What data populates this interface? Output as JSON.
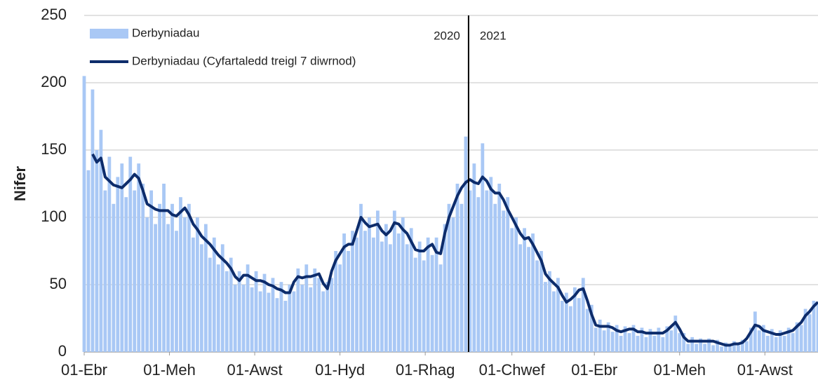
{
  "chart_data": {
    "type": "bar_line",
    "ylabel": "Nifer",
    "xlim": [
      0,
      525
    ],
    "xticks": [
      {
        "value": 0,
        "label": "01-Ebr"
      },
      {
        "value": 61,
        "label": "01-Meh"
      },
      {
        "value": 122,
        "label": "01-Awst"
      },
      {
        "value": 183,
        "label": "01-Hyd"
      },
      {
        "value": 244,
        "label": "01-Rhag"
      },
      {
        "value": 306,
        "label": "01-Chwef"
      },
      {
        "value": 365,
        "label": "01-Ebr"
      },
      {
        "value": 426,
        "label": "01-Meh"
      },
      {
        "value": 487,
        "label": "01-Awst"
      }
    ],
    "ylim": [
      0,
      250
    ],
    "yticks": [
      0,
      50,
      100,
      150,
      200,
      250
    ],
    "grid": true,
    "legend": "upper left",
    "divider": {
      "x": 275,
      "labels": [
        "2020",
        "2021"
      ]
    },
    "x": [
      0,
      3,
      6,
      9,
      12,
      15,
      18,
      21,
      24,
      27,
      30,
      33,
      36,
      39,
      42,
      45,
      48,
      51,
      54,
      57,
      60,
      63,
      66,
      69,
      72,
      75,
      78,
      81,
      84,
      87,
      90,
      93,
      96,
      99,
      102,
      105,
      108,
      111,
      114,
      117,
      120,
      123,
      126,
      129,
      132,
      135,
      138,
      141,
      144,
      147,
      150,
      153,
      156,
      159,
      162,
      165,
      168,
      171,
      174,
      177,
      180,
      183,
      186,
      189,
      192,
      195,
      198,
      201,
      204,
      207,
      210,
      213,
      216,
      219,
      222,
      225,
      228,
      231,
      234,
      237,
      240,
      243,
      246,
      249,
      252,
      255,
      258,
      261,
      264,
      267,
      270,
      273,
      276,
      279,
      282,
      285,
      288,
      291,
      294,
      297,
      300,
      303,
      306,
      309,
      312,
      315,
      318,
      321,
      324,
      327,
      330,
      333,
      336,
      339,
      342,
      345,
      348,
      351,
      354,
      357,
      360,
      363,
      366,
      369,
      372,
      375,
      378,
      381,
      384,
      387,
      390,
      393,
      396,
      399,
      402,
      405,
      408,
      411,
      414,
      417,
      420,
      423,
      426,
      429,
      432,
      435,
      438,
      441,
      444,
      447,
      450,
      453,
      456,
      459,
      462,
      465,
      468,
      471,
      474,
      477,
      480,
      483,
      486,
      489,
      492,
      495,
      498,
      501,
      504,
      507,
      510,
      513,
      516,
      519,
      522,
      525
    ],
    "series": [
      {
        "name": "Derbyniadau",
        "kind": "bar",
        "color": "#a9c8f5",
        "values": [
          205,
          135,
          195,
          150,
          165,
          120,
          145,
          110,
          130,
          140,
          115,
          145,
          120,
          140,
          125,
          100,
          120,
          95,
          110,
          125,
          95,
          110,
          90,
          115,
          100,
          110,
          85,
          100,
          80,
          95,
          70,
          85,
          65,
          80,
          60,
          70,
          50,
          60,
          50,
          65,
          48,
          60,
          45,
          58,
          44,
          55,
          40,
          52,
          38,
          50,
          45,
          62,
          50,
          65,
          48,
          62,
          55,
          45,
          52,
          55,
          75,
          65,
          88,
          75,
          90,
          85,
          110,
          90,
          100,
          85,
          105,
          82,
          95,
          80,
          105,
          88,
          100,
          80,
          92,
          70,
          82,
          68,
          85,
          72,
          85,
          65,
          95,
          110,
          100,
          125,
          110,
          160,
          120,
          140,
          115,
          155,
          120,
          130,
          110,
          125,
          105,
          115,
          92,
          100,
          80,
          92,
          78,
          88,
          68,
          75,
          52,
          60,
          45,
          55,
          38,
          44,
          34,
          48,
          40,
          55,
          32,
          35,
          18,
          24,
          16,
          22,
          15,
          20,
          12,
          19,
          14,
          20,
          12,
          18,
          11,
          17,
          12,
          18,
          11,
          19,
          16,
          27,
          14,
          14,
          6,
          11,
          6,
          10,
          6,
          10,
          5,
          9,
          4,
          7,
          4,
          8,
          5,
          9,
          8,
          18,
          30,
          16,
          20,
          12,
          17,
          11,
          16,
          12,
          18,
          14,
          22,
          20,
          32,
          28,
          38,
          35
        ]
      },
      {
        "name": "Derbyniadau  (Cyfartaledd treigl 7 diwrnod)",
        "kind": "line",
        "color": "#0d2c6b",
        "values": [
          null,
          null,
          147,
          141,
          144,
          130,
          127,
          124,
          123,
          122,
          125,
          128,
          132,
          129,
          120,
          110,
          108,
          106,
          105,
          105,
          105,
          102,
          101,
          104,
          107,
          102,
          95,
          91,
          86,
          83,
          80,
          76,
          72,
          69,
          66,
          62,
          56,
          53,
          57,
          57,
          55,
          53,
          53,
          52,
          50,
          49,
          47,
          46,
          44,
          44,
          52,
          56,
          55,
          56,
          56,
          57,
          58,
          51,
          47,
          60,
          68,
          73,
          78,
          80,
          80,
          90,
          100,
          96,
          93,
          94,
          95,
          90,
          87,
          90,
          96,
          95,
          91,
          88,
          82,
          76,
          75,
          75,
          78,
          80,
          74,
          73,
          88,
          100,
          108,
          116,
          122,
          126,
          128,
          126,
          125,
          130,
          127,
          121,
          118,
          118,
          113,
          106,
          100,
          94,
          88,
          84,
          85,
          80,
          74,
          68,
          58,
          54,
          51,
          48,
          42,
          37,
          39,
          42,
          46,
          47,
          38,
          28,
          20,
          19,
          19,
          19,
          18,
          16,
          15,
          16,
          17,
          17,
          15,
          15,
          14,
          14,
          14,
          14,
          14,
          16,
          19,
          22,
          17,
          11,
          8,
          8,
          8,
          8,
          8,
          8,
          8,
          7,
          6,
          5,
          5,
          6,
          6,
          7,
          10,
          15,
          20,
          19,
          16,
          15,
          14,
          13,
          13,
          14,
          15,
          16,
          19,
          22,
          27,
          30,
          34,
          37
        ]
      }
    ]
  }
}
